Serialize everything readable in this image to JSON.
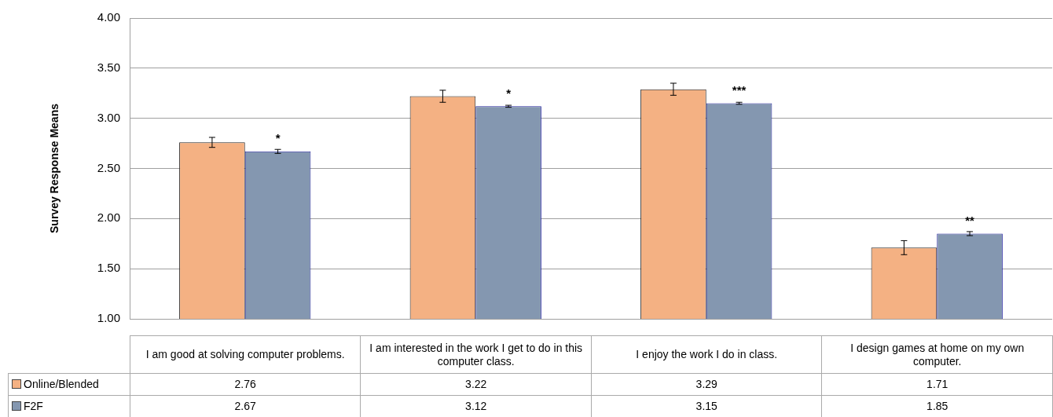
{
  "chart_data": {
    "type": "bar",
    "ylabel": "Survey Response Means",
    "categories": [
      "I am good at solving computer problems.",
      "I am interested in the work I get to do in this computer class.",
      "I enjoy the work I do in class.",
      "I design games at home on my own computer."
    ],
    "series": [
      {
        "name": "Online/Blended",
        "color": "#f4b183",
        "values": [
          2.76,
          3.22,
          3.29,
          1.71
        ],
        "errors": [
          0.05,
          0.06,
          0.06,
          0.07
        ]
      },
      {
        "name": "F2F",
        "color": "#8497b0",
        "values": [
          2.67,
          3.12,
          3.15,
          1.85
        ],
        "errors": [
          0.02,
          0.01,
          0.01,
          0.02
        ]
      }
    ],
    "ylim": [
      1,
      4
    ],
    "yticks": [
      {
        "value": 1,
        "label": "1.00"
      },
      {
        "value": 1.5,
        "label": "1.50"
      },
      {
        "value": 2,
        "label": "2.00"
      },
      {
        "value": 2.5,
        "label": "2.50"
      },
      {
        "value": 3,
        "label": "3.00"
      },
      {
        "value": 3.5,
        "label": "3.50"
      },
      {
        "value": 4,
        "label": "4.00"
      }
    ],
    "grid": "y",
    "legend": "bottom",
    "data_labels": true,
    "annotations": [
      {
        "text": "*",
        "x": "I am good at solving computer problems.",
        "y": 2.67
      },
      {
        "text": "*",
        "x": "I am interested in the work I get to do in this computer class.",
        "y": 3.12
      },
      {
        "text": "***",
        "x": "I enjoy the work I do in class.",
        "y": 3.15
      },
      {
        "text": "**",
        "x": "I design games at home on my own computer.",
        "y": 1.85
      }
    ]
  }
}
